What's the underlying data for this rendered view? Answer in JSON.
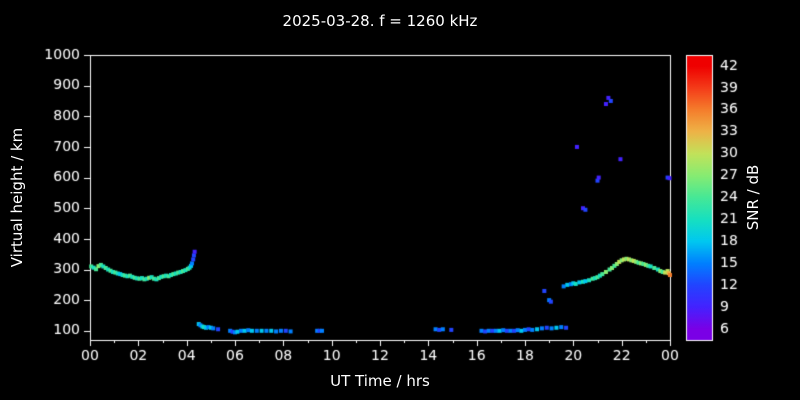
{
  "chart_data": {
    "type": "scatter",
    "title": "2025-03-28. f = 1260 kHz",
    "xlabel": "UT Time / hrs",
    "ylabel": "Virtual height / km",
    "colorbar_label": "SNR / dB",
    "xlim": [
      0,
      24
    ],
    "ylim": [
      70,
      1000
    ],
    "x_ticks": {
      "values": [
        0,
        2,
        4,
        6,
        8,
        10,
        12,
        14,
        16,
        18,
        20,
        22,
        24
      ],
      "labels": [
        "00",
        "02",
        "04",
        "06",
        "08",
        "10",
        "12",
        "14",
        "16",
        "18",
        "20",
        "22",
        "00"
      ]
    },
    "y_ticks": {
      "values": [
        100,
        200,
        300,
        400,
        500,
        600,
        700,
        800,
        900,
        1000
      ],
      "labels": [
        "100",
        "200",
        "300",
        "400",
        "500",
        "600",
        "700",
        "800",
        "900",
        "1000"
      ]
    },
    "colorbar_ticks": [
      6,
      9,
      12,
      15,
      18,
      21,
      24,
      27,
      30,
      33,
      36,
      39,
      42
    ],
    "colorbar_range": [
      4.5,
      43.5
    ],
    "colors": {
      "background": "#000000",
      "frame": "#ffffff",
      "text": "#ffffff"
    },
    "colormap_stops": [
      {
        "v": 6,
        "color": "#7a00e6"
      },
      {
        "v": 9,
        "color": "#4422ff"
      },
      {
        "v": 12,
        "color": "#2244ff"
      },
      {
        "v": 15,
        "color": "#0080ff"
      },
      {
        "v": 18,
        "color": "#00c8f0"
      },
      {
        "v": 21,
        "color": "#17e0c0"
      },
      {
        "v": 24,
        "color": "#46e896"
      },
      {
        "v": 27,
        "color": "#87ec72"
      },
      {
        "v": 30,
        "color": "#c2e25a"
      },
      {
        "v": 33,
        "color": "#eeb347"
      },
      {
        "v": 36,
        "color": "#f57d2c"
      },
      {
        "v": 39,
        "color": "#f43b19"
      },
      {
        "v": 42,
        "color": "#ef0000"
      }
    ],
    "points": [
      [
        0.05,
        310,
        24
      ],
      [
        0.15,
        306,
        21
      ],
      [
        0.25,
        301,
        24
      ],
      [
        0.35,
        311,
        27
      ],
      [
        0.45,
        315,
        24
      ],
      [
        0.55,
        310,
        21
      ],
      [
        0.65,
        305,
        24
      ],
      [
        0.75,
        300,
        21
      ],
      [
        0.85,
        296,
        24
      ],
      [
        0.95,
        292,
        21
      ],
      [
        1.05,
        290,
        24
      ],
      [
        1.15,
        287,
        21
      ],
      [
        1.25,
        285,
        18
      ],
      [
        1.35,
        282,
        21
      ],
      [
        1.45,
        280,
        24
      ],
      [
        1.55,
        278,
        21
      ],
      [
        1.65,
        280,
        24
      ],
      [
        1.75,
        276,
        21
      ],
      [
        1.85,
        273,
        24
      ],
      [
        1.95,
        271,
        21
      ],
      [
        2.05,
        270,
        24
      ],
      [
        2.15,
        272,
        21
      ],
      [
        2.25,
        268,
        24
      ],
      [
        2.35,
        270,
        21
      ],
      [
        2.45,
        273,
        27
      ],
      [
        2.55,
        275,
        21
      ],
      [
        2.65,
        270,
        24
      ],
      [
        2.75,
        268,
        21
      ],
      [
        2.85,
        272,
        24
      ],
      [
        2.95,
        276,
        21
      ],
      [
        3.05,
        278,
        24
      ],
      [
        3.15,
        280,
        21
      ],
      [
        3.25,
        278,
        24
      ],
      [
        3.35,
        282,
        21
      ],
      [
        3.45,
        285,
        24
      ],
      [
        3.55,
        287,
        21
      ],
      [
        3.65,
        290,
        24
      ],
      [
        3.75,
        292,
        21
      ],
      [
        3.85,
        295,
        24
      ],
      [
        3.95,
        298,
        21
      ],
      [
        4.05,
        302,
        24
      ],
      [
        4.12,
        306,
        21
      ],
      [
        4.18,
        312,
        18
      ],
      [
        4.22,
        320,
        15
      ],
      [
        4.27,
        333,
        12
      ],
      [
        4.3,
        346,
        12
      ],
      [
        4.33,
        358,
        9
      ],
      [
        4.5,
        122,
        18
      ],
      [
        4.57,
        118,
        15
      ],
      [
        4.65,
        114,
        18
      ],
      [
        4.72,
        112,
        21
      ],
      [
        4.8,
        110,
        18
      ],
      [
        4.9,
        112,
        15
      ],
      [
        5.0,
        110,
        18
      ],
      [
        5.1,
        108,
        15
      ],
      [
        5.3,
        105,
        12
      ],
      [
        5.8,
        100,
        15
      ],
      [
        5.9,
        97,
        12
      ],
      [
        6.0,
        95,
        15
      ],
      [
        6.1,
        97,
        18
      ],
      [
        6.25,
        100,
        15
      ],
      [
        6.4,
        100,
        18
      ],
      [
        6.55,
        102,
        15
      ],
      [
        6.7,
        100,
        18
      ],
      [
        6.9,
        100,
        15
      ],
      [
        7.1,
        100,
        18
      ],
      [
        7.3,
        100,
        15
      ],
      [
        7.5,
        100,
        18
      ],
      [
        7.7,
        98,
        15
      ],
      [
        7.9,
        100,
        15
      ],
      [
        8.1,
        100,
        12
      ],
      [
        8.3,
        98,
        15
      ],
      [
        9.4,
        100,
        15
      ],
      [
        9.5,
        100,
        12
      ],
      [
        9.6,
        100,
        15
      ],
      [
        14.3,
        105,
        15
      ],
      [
        14.45,
        103,
        12
      ],
      [
        14.6,
        105,
        15
      ],
      [
        14.95,
        103,
        12
      ],
      [
        16.2,
        100,
        15
      ],
      [
        16.35,
        98,
        12
      ],
      [
        16.5,
        100,
        15
      ],
      [
        16.65,
        100,
        12
      ],
      [
        16.8,
        100,
        15
      ],
      [
        16.95,
        100,
        18
      ],
      [
        17.1,
        102,
        15
      ],
      [
        17.25,
        100,
        12
      ],
      [
        17.4,
        100,
        15
      ],
      [
        17.55,
        100,
        12
      ],
      [
        17.7,
        102,
        15
      ],
      [
        17.85,
        100,
        18
      ],
      [
        18.0,
        103,
        15
      ],
      [
        18.15,
        105,
        12
      ],
      [
        18.3,
        103,
        15
      ],
      [
        18.5,
        105,
        18
      ],
      [
        18.7,
        108,
        15
      ],
      [
        18.9,
        110,
        12
      ],
      [
        19.1,
        108,
        15
      ],
      [
        19.3,
        110,
        18
      ],
      [
        19.5,
        112,
        15
      ],
      [
        19.7,
        110,
        12
      ],
      [
        18.8,
        230,
        12
      ],
      [
        19.0,
        200,
        15
      ],
      [
        19.07,
        195,
        12
      ],
      [
        19.6,
        245,
        15
      ],
      [
        19.75,
        250,
        18
      ],
      [
        19.9,
        252,
        15
      ],
      [
        20.0,
        255,
        18
      ],
      [
        20.1,
        253,
        21
      ],
      [
        20.25,
        258,
        18
      ],
      [
        20.4,
        260,
        21
      ],
      [
        20.5,
        262,
        18
      ],
      [
        20.65,
        265,
        21
      ],
      [
        20.8,
        270,
        24
      ],
      [
        20.9,
        272,
        21
      ],
      [
        21.0,
        275,
        24
      ],
      [
        21.1,
        280,
        21
      ],
      [
        21.2,
        285,
        24
      ],
      [
        21.35,
        292,
        27
      ],
      [
        21.5,
        300,
        24
      ],
      [
        21.6,
        305,
        27
      ],
      [
        21.7,
        312,
        24
      ],
      [
        21.8,
        318,
        27
      ],
      [
        21.9,
        325,
        30
      ],
      [
        22.0,
        330,
        27
      ],
      [
        22.1,
        333,
        30
      ],
      [
        22.2,
        335,
        27
      ],
      [
        22.3,
        333,
        30
      ],
      [
        22.4,
        330,
        27
      ],
      [
        22.5,
        328,
        30
      ],
      [
        22.6,
        325,
        27
      ],
      [
        22.7,
        322,
        24
      ],
      [
        22.8,
        320,
        27
      ],
      [
        22.9,
        318,
        24
      ],
      [
        23.0,
        315,
        27
      ],
      [
        23.1,
        312,
        24
      ],
      [
        23.2,
        310,
        21
      ],
      [
        23.35,
        305,
        24
      ],
      [
        23.5,
        300,
        21
      ],
      [
        23.6,
        295,
        27
      ],
      [
        23.7,
        292,
        24
      ],
      [
        23.8,
        290,
        30
      ],
      [
        23.9,
        295,
        30
      ],
      [
        23.95,
        288,
        33
      ],
      [
        24.0,
        282,
        36
      ],
      [
        20.15,
        700,
        9
      ],
      [
        20.4,
        500,
        9
      ],
      [
        20.5,
        495,
        12
      ],
      [
        21.0,
        590,
        12
      ],
      [
        21.05,
        600,
        9
      ],
      [
        21.35,
        840,
        9
      ],
      [
        21.45,
        860,
        9
      ],
      [
        21.55,
        850,
        12
      ],
      [
        21.95,
        660,
        9
      ],
      [
        23.9,
        600,
        12
      ],
      [
        23.98,
        598,
        9
      ]
    ]
  }
}
